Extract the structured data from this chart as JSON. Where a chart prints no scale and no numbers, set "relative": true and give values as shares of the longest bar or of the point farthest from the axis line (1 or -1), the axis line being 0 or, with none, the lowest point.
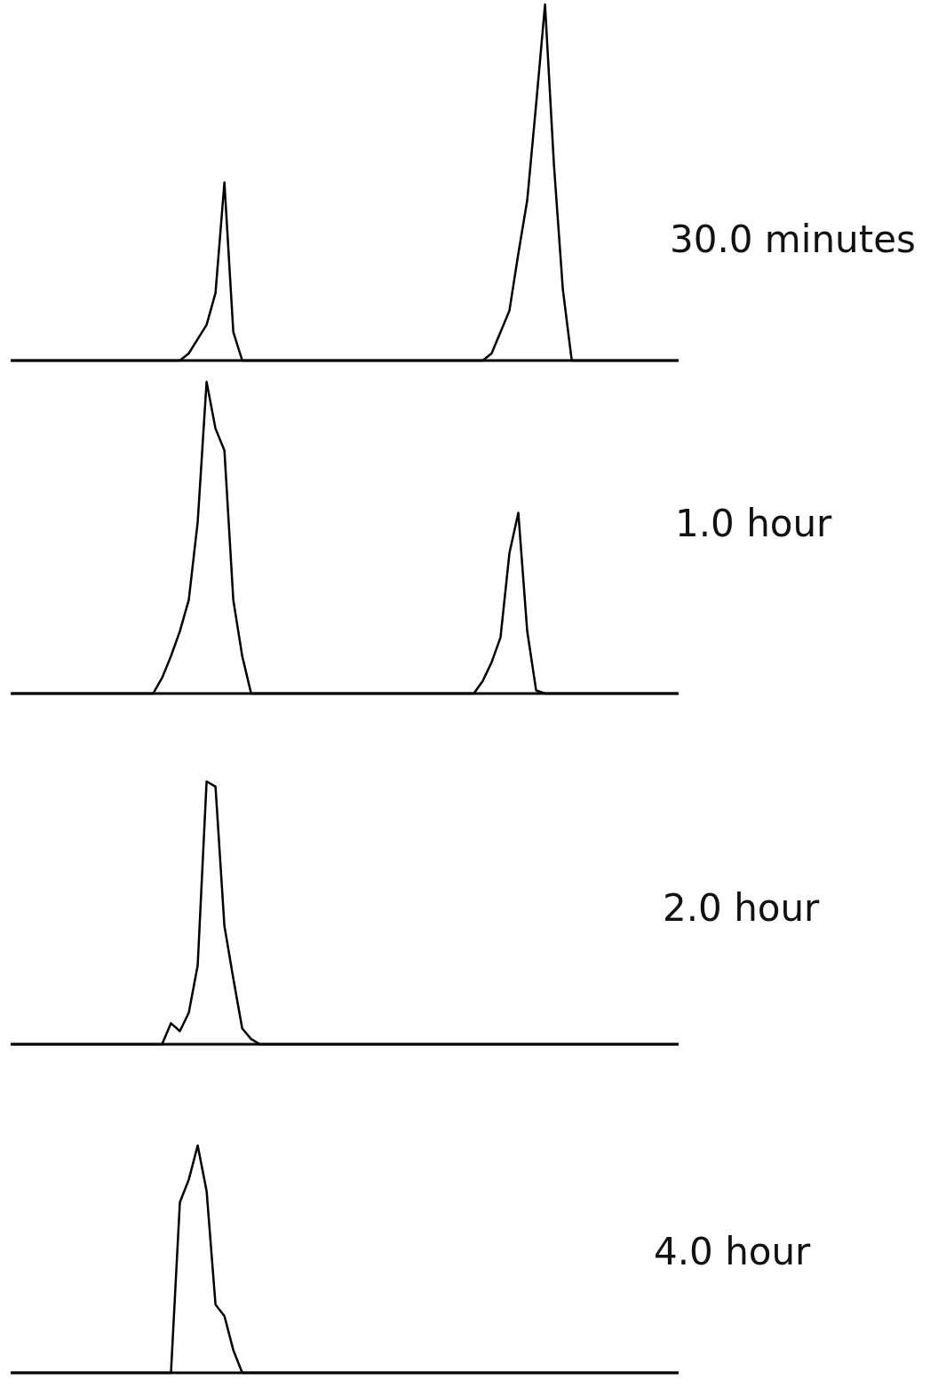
{
  "chart_data": [
    {
      "type": "line",
      "title": "30.0 minutes",
      "relative": true,
      "categories": [
        null,
        null,
        null,
        null,
        null,
        null,
        null,
        null,
        null,
        null,
        null,
        null,
        null,
        null,
        null,
        null,
        null,
        null,
        null,
        null,
        null,
        null,
        null,
        null,
        null,
        null,
        null,
        null,
        null,
        null,
        null,
        null,
        null,
        null,
        null,
        null,
        null,
        null,
        null,
        null,
        null,
        null,
        null,
        null,
        null,
        null,
        null,
        null,
        null,
        null,
        null,
        null,
        null,
        null,
        null,
        null,
        null,
        null,
        null,
        null,
        null,
        null,
        null,
        null,
        null,
        null,
        null,
        null,
        null,
        null,
        null,
        null,
        null,
        null,
        null,
        null
      ],
      "series": [
        {
          "color": "#000000",
          "values": [
            0,
            0,
            0,
            0,
            0,
            0,
            0,
            0,
            0,
            0,
            0,
            0,
            0,
            0,
            0,
            0,
            0,
            0,
            0,
            0,
            0.02,
            0.06,
            0.1,
            0.19,
            0.5,
            0.08,
            0,
            0,
            0,
            0,
            0,
            0,
            0,
            0,
            0,
            0,
            0,
            0,
            0,
            0,
            0,
            0,
            0,
            0,
            0,
            0,
            0,
            0,
            0,
            0,
            0,
            0,
            0,
            0,
            0.02,
            0.08,
            0.14,
            0.3,
            0.45,
            0.72,
            1.0,
            0.55,
            0.2,
            0,
            0,
            0,
            0,
            0,
            0,
            0,
            0,
            0,
            0,
            0,
            0,
            0
          ]
        }
      ]
    },
    {
      "type": "line",
      "title": "1.0 hour",
      "relative": true,
      "categories": [
        null,
        null,
        null,
        null,
        null,
        null,
        null,
        null,
        null,
        null,
        null,
        null,
        null,
        null,
        null,
        null,
        null,
        null,
        null,
        null,
        null,
        null,
        null,
        null,
        null,
        null,
        null,
        null,
        null,
        null,
        null,
        null,
        null,
        null,
        null,
        null,
        null,
        null,
        null,
        null,
        null,
        null,
        null,
        null,
        null,
        null,
        null,
        null,
        null,
        null,
        null,
        null,
        null,
        null,
        null,
        null,
        null,
        null,
        null,
        null,
        null,
        null,
        null,
        null,
        null,
        null,
        null,
        null,
        null,
        null,
        null,
        null,
        null,
        null,
        null,
        null
      ],
      "series": [
        {
          "color": "#000000",
          "values": [
            0,
            0,
            0,
            0,
            0,
            0,
            0,
            0,
            0,
            0,
            0,
            0,
            0,
            0,
            0,
            0,
            0,
            0.05,
            0.12,
            0.2,
            0.3,
            0.55,
            1.0,
            0.85,
            0.78,
            0.3,
            0.12,
            0,
            0,
            0,
            0,
            0,
            0,
            0,
            0,
            0,
            0,
            0,
            0,
            0,
            0,
            0,
            0,
            0,
            0,
            0,
            0,
            0,
            0,
            0,
            0,
            0,
            0,
            0.04,
            0.1,
            0.18,
            0.45,
            0.58,
            0.2,
            0.01,
            0,
            0,
            0,
            0,
            0,
            0,
            0,
            0,
            0,
            0,
            0,
            0,
            0,
            0,
            0,
            0
          ]
        }
      ]
    },
    {
      "type": "line",
      "title": "2.0 hour",
      "relative": true,
      "categories": [
        null,
        null,
        null,
        null,
        null,
        null,
        null,
        null,
        null,
        null,
        null,
        null,
        null,
        null,
        null,
        null,
        null,
        null,
        null,
        null,
        null,
        null,
        null,
        null,
        null,
        null,
        null,
        null,
        null,
        null,
        null,
        null,
        null,
        null,
        null,
        null,
        null,
        null,
        null,
        null,
        null,
        null,
        null,
        null,
        null,
        null,
        null,
        null,
        null,
        null,
        null,
        null,
        null,
        null,
        null,
        null,
        null,
        null,
        null,
        null,
        null,
        null,
        null,
        null,
        null,
        null,
        null,
        null,
        null,
        null,
        null,
        null,
        null,
        null,
        null,
        null
      ],
      "series": [
        {
          "color": "#000000",
          "values": [
            0,
            0,
            0,
            0,
            0,
            0,
            0,
            0,
            0,
            0,
            0,
            0,
            0,
            0,
            0,
            0,
            0,
            0,
            0.08,
            0.05,
            0.12,
            0.3,
            1.0,
            0.98,
            0.45,
            0.25,
            0.06,
            0.02,
            0,
            0,
            0,
            0,
            0,
            0,
            0,
            0,
            0,
            0,
            0,
            0,
            0,
            0,
            0,
            0,
            0,
            0,
            0,
            0,
            0,
            0,
            0,
            0,
            0,
            0,
            0,
            0,
            0,
            0,
            0,
            0,
            0,
            0,
            0,
            0,
            0,
            0,
            0,
            0,
            0,
            0,
            0,
            0,
            0,
            0,
            0,
            0
          ]
        }
      ]
    },
    {
      "type": "line",
      "title": "4.0 hour",
      "relative": true,
      "categories": [
        null,
        null,
        null,
        null,
        null,
        null,
        null,
        null,
        null,
        null,
        null,
        null,
        null,
        null,
        null,
        null,
        null,
        null,
        null,
        null,
        null,
        null,
        null,
        null,
        null,
        null,
        null,
        null,
        null,
        null,
        null,
        null,
        null,
        null,
        null,
        null,
        null,
        null,
        null,
        null,
        null,
        null,
        null,
        null,
        null,
        null,
        null,
        null,
        null,
        null,
        null,
        null,
        null,
        null,
        null,
        null,
        null,
        null,
        null,
        null,
        null,
        null,
        null,
        null,
        null,
        null,
        null,
        null,
        null,
        null,
        null,
        null,
        null,
        null,
        null,
        null
      ],
      "series": [
        {
          "color": "#000000",
          "values": [
            0,
            0,
            0,
            0,
            0,
            0,
            0,
            0,
            0,
            0,
            0,
            0,
            0,
            0,
            0,
            0,
            0,
            0,
            0,
            0.75,
            0.85,
            1.0,
            0.8,
            0.3,
            0.25,
            0.1,
            0,
            0,
            0,
            0,
            0,
            0,
            0,
            0,
            0,
            0,
            0,
            0,
            0,
            0,
            0,
            0,
            0,
            0,
            0,
            0,
            0,
            0,
            0,
            0,
            0,
            0,
            0,
            0,
            0,
            0,
            0,
            0,
            0,
            0,
            0,
            0,
            0,
            0,
            0,
            0,
            0,
            0,
            0,
            0,
            0,
            0,
            0,
            0,
            0,
            0
          ]
        }
      ]
    }
  ]
}
